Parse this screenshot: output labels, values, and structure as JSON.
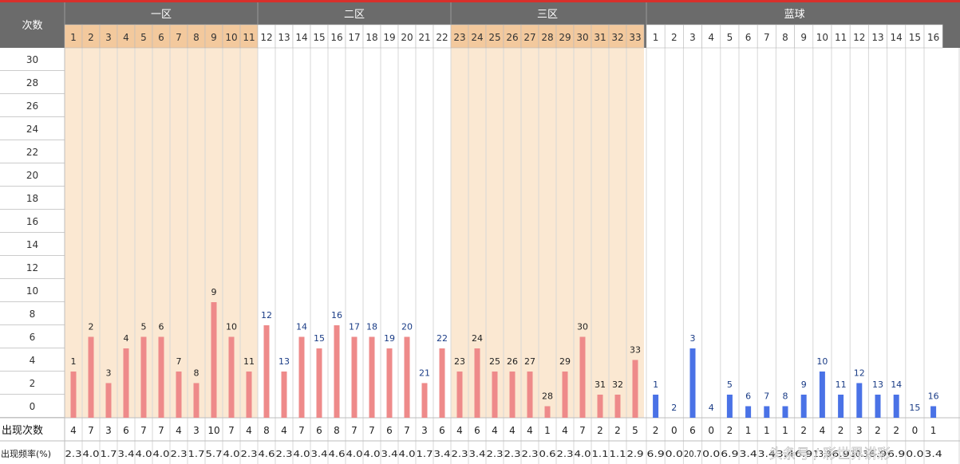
{
  "chart_data": {
    "type": "bar",
    "corner_label": "次数",
    "groups": [
      {
        "name": "一区",
        "numbers": [
          "1",
          "2",
          "3",
          "4",
          "5",
          "6",
          "7",
          "8",
          "9",
          "10",
          "11"
        ]
      },
      {
        "name": "二区",
        "numbers": [
          "12",
          "13",
          "14",
          "15",
          "16",
          "17",
          "18",
          "19",
          "20",
          "21",
          "22"
        ]
      },
      {
        "name": "三区",
        "numbers": [
          "23",
          "24",
          "25",
          "26",
          "27",
          "28",
          "29",
          "30",
          "31",
          "32",
          "33"
        ]
      },
      {
        "name": "蓝球",
        "numbers": [
          "1",
          "2",
          "3",
          "4",
          "5",
          "6",
          "7",
          "8",
          "9",
          "10",
          "11",
          "12",
          "13",
          "14",
          "15",
          "16"
        ]
      }
    ],
    "y_ticks": [
      "30",
      "28",
      "26",
      "24",
      "22",
      "20",
      "18",
      "16",
      "14",
      "12",
      "10",
      "8",
      "6",
      "4",
      "2",
      "0"
    ],
    "ylim": [
      0,
      30
    ],
    "red_counts": [
      4,
      7,
      3,
      6,
      7,
      7,
      4,
      3,
      10,
      7,
      4,
      8,
      4,
      7,
      6,
      8,
      7,
      7,
      6,
      7,
      3,
      6,
      4,
      6,
      4,
      4,
      4,
      1,
      4,
      7,
      2,
      2,
      5
    ],
    "blue_counts": [
      2,
      0,
      6,
      0,
      2,
      1,
      1,
      1,
      2,
      4,
      2,
      3,
      2,
      2,
      0,
      1
    ],
    "red_freq": [
      "2.3",
      "4.0",
      "1.7",
      "3.4",
      "4.0",
      "4.0",
      "2.3",
      "1.7",
      "5.7",
      "4.0",
      "2.3",
      "4.6",
      "2.3",
      "4.0",
      "3.4",
      "4.6",
      "4.0",
      "4.0",
      "3.4",
      "4.0",
      "1.7",
      "3.4",
      "2.3",
      "3.4",
      "2.3",
      "2.3",
      "2.3",
      "0.6",
      "2.3",
      "4.0",
      "1.1",
      "1.1",
      "2.9"
    ],
    "blue_freq": [
      "6.9",
      "0.0",
      "20.7",
      "0.0",
      "6.9",
      "3.4",
      "3.4",
      "3.4",
      "6.9",
      "13.8",
      "6.9",
      "10.3",
      "6.9",
      "6.9",
      "0.0",
      "3.4"
    ],
    "row_labels": {
      "count": "出现次数",
      "freq": "出现频率(%)"
    },
    "watermark": "头条号 / 彩世界讲彩",
    "colors": {
      "red_bar": "#ee8a8a",
      "blue_bar": "#4a72e6",
      "header_bg": "#6b6b6b",
      "group_shade": "#fbe8d2",
      "top_line": "#d8302c",
      "label_blue": "#1a3c86"
    }
  }
}
